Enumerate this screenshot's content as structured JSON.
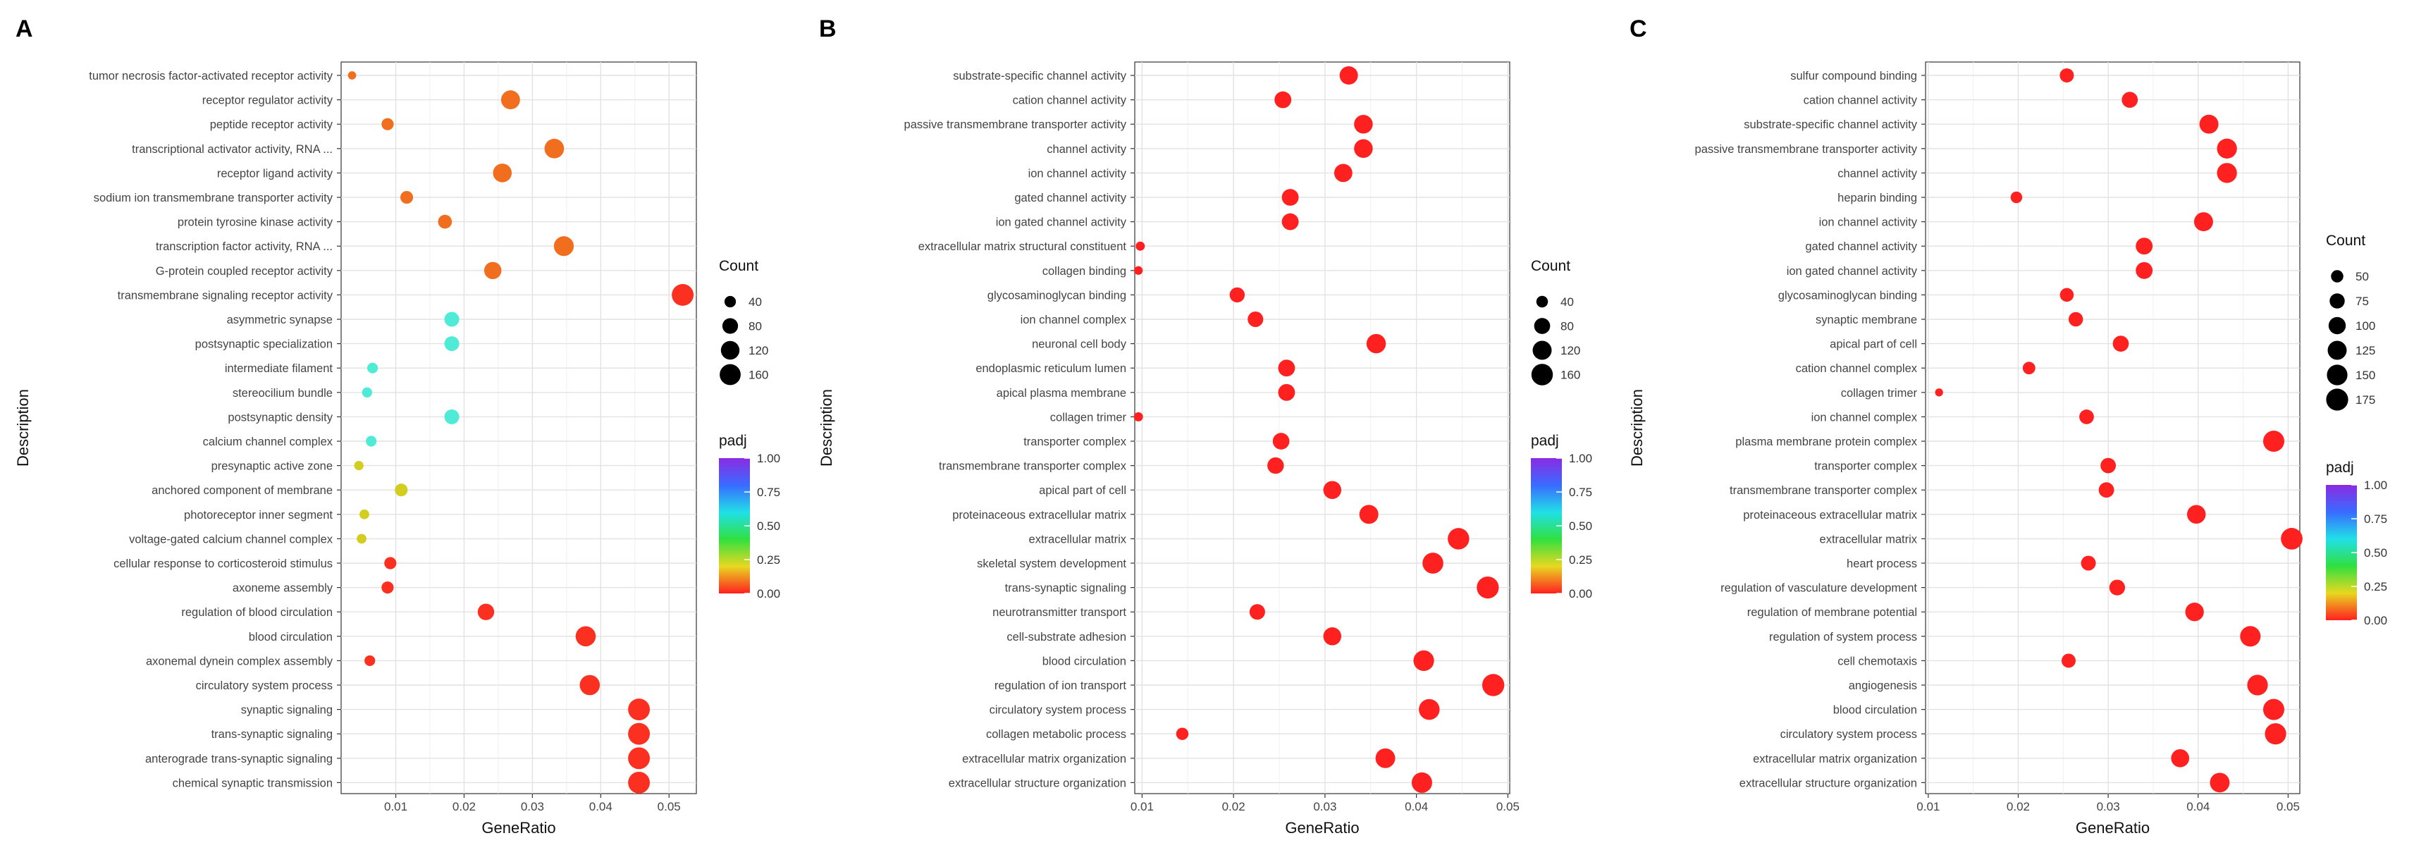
{
  "chart_data": [
    {
      "type": "scatter",
      "panel_label": "A",
      "xlabel": "GeneRatio",
      "ylabel": "Description",
      "xlim": [
        0.002,
        0.054
      ],
      "xticks": [
        0.01,
        0.02,
        0.03,
        0.04,
        0.05
      ],
      "xtick_labels": [
        "0.01",
        "0.02",
        "0.03",
        "0.04",
        "0.05"
      ],
      "grid": true,
      "size_legend": {
        "title": "Count",
        "values": [
          40,
          80,
          120,
          160
        ],
        "labels": [
          "40",
          "80",
          "120",
          "160"
        ]
      },
      "color_legend": {
        "title": "padj",
        "labels": [
          "1.00",
          "0.75",
          "0.50",
          "0.25",
          "0.00"
        ]
      },
      "size_range": [
        20,
        190
      ],
      "terms": [
        {
          "label": "tumor necrosis factor-activated receptor activity",
          "x": 0.0036,
          "count": 24,
          "padj": 0.1
        },
        {
          "label": "receptor regulator activity",
          "x": 0.0268,
          "count": 125,
          "padj": 0.1
        },
        {
          "label": "peptide receptor activity",
          "x": 0.0088,
          "count": 45,
          "padj": 0.1
        },
        {
          "label": "transcriptional activator activity, RNA ...",
          "x": 0.0332,
          "count": 135,
          "padj": 0.1
        },
        {
          "label": "receptor ligand activity",
          "x": 0.0256,
          "count": 122,
          "padj": 0.1
        },
        {
          "label": "sodium ion transmembrane transporter activity",
          "x": 0.0116,
          "count": 50,
          "padj": 0.1
        },
        {
          "label": "protein tyrosine kinase activity",
          "x": 0.0172,
          "count": 60,
          "padj": 0.1
        },
        {
          "label": "transcription factor activity, RNA ...",
          "x": 0.0346,
          "count": 140,
          "padj": 0.1
        },
        {
          "label": "G-protein coupled receptor activity",
          "x": 0.0242,
          "count": 100,
          "padj": 0.1
        },
        {
          "label": "transmembrane signaling receptor activity",
          "x": 0.052,
          "count": 175,
          "padj": 0.02
        },
        {
          "label": "asymmetric synapse",
          "x": 0.0182,
          "count": 70,
          "padj": 0.6
        },
        {
          "label": "postsynaptic specialization",
          "x": 0.0182,
          "count": 70,
          "padj": 0.6
        },
        {
          "label": "intermediate filament",
          "x": 0.0066,
          "count": 35,
          "padj": 0.6
        },
        {
          "label": "stereocilium bundle",
          "x": 0.0058,
          "count": 32,
          "padj": 0.6
        },
        {
          "label": "postsynaptic density",
          "x": 0.0182,
          "count": 70,
          "padj": 0.6
        },
        {
          "label": "calcium channel complex",
          "x": 0.0064,
          "count": 35,
          "padj": 0.6
        },
        {
          "label": "presynaptic active zone",
          "x": 0.0046,
          "count": 28,
          "padj": 0.32
        },
        {
          "label": "anchored component of membrane",
          "x": 0.0108,
          "count": 50,
          "padj": 0.32
        },
        {
          "label": "photoreceptor inner segment",
          "x": 0.0054,
          "count": 30,
          "padj": 0.32
        },
        {
          "label": "voltage-gated calcium channel complex",
          "x": 0.005,
          "count": 30,
          "padj": 0.32
        },
        {
          "label": "cellular response to corticosteroid stimulus",
          "x": 0.0092,
          "count": 45,
          "padj": 0.02
        },
        {
          "label": "axoneme assembly",
          "x": 0.0088,
          "count": 45,
          "padj": 0.02
        },
        {
          "label": "regulation of blood circulation",
          "x": 0.0232,
          "count": 90,
          "padj": 0.02
        },
        {
          "label": "blood circulation",
          "x": 0.0378,
          "count": 145,
          "padj": 0.02
        },
        {
          "label": "axonemal dynein complex assembly",
          "x": 0.0062,
          "count": 35,
          "padj": 0.02
        },
        {
          "label": "circulatory system process",
          "x": 0.0384,
          "count": 145,
          "padj": 0.02
        },
        {
          "label": "synaptic signaling",
          "x": 0.0456,
          "count": 175,
          "padj": 0.02
        },
        {
          "label": "trans-synaptic signaling",
          "x": 0.0456,
          "count": 175,
          "padj": 0.02
        },
        {
          "label": "anterograde trans-synaptic signaling",
          "x": 0.0456,
          "count": 175,
          "padj": 0.02
        },
        {
          "label": "chemical synaptic transmission",
          "x": 0.0456,
          "count": 175,
          "padj": 0.02
        }
      ]
    },
    {
      "type": "scatter",
      "panel_label": "B",
      "xlabel": "GeneRatio",
      "ylabel": "Description",
      "xlim": [
        0.0092,
        0.0502
      ],
      "xticks": [
        0.01,
        0.02,
        0.03,
        0.04,
        0.05
      ],
      "xtick_labels": [
        "0.01",
        "0.02",
        "0.03",
        "0.04",
        "0.05"
      ],
      "grid": true,
      "size_legend": {
        "title": "Count",
        "values": [
          40,
          80,
          120,
          160
        ],
        "labels": [
          "40",
          "80",
          "120",
          "160"
        ]
      },
      "color_legend": {
        "title": "padj",
        "labels": [
          "1.00",
          "0.75",
          "0.50",
          "0.25",
          "0.00"
        ]
      },
      "size_range": [
        20,
        180
      ],
      "terms": [
        {
          "label": "substrate-specific channel activity",
          "x": 0.0326,
          "count": 110,
          "padj": 0.0
        },
        {
          "label": "cation channel activity",
          "x": 0.0254,
          "count": 90,
          "padj": 0.0
        },
        {
          "label": "passive transmembrane transporter activity",
          "x": 0.0342,
          "count": 115,
          "padj": 0.0
        },
        {
          "label": "channel activity",
          "x": 0.0342,
          "count": 115,
          "padj": 0.0
        },
        {
          "label": "ion channel activity",
          "x": 0.032,
          "count": 108,
          "padj": 0.0
        },
        {
          "label": "gated channel activity",
          "x": 0.0262,
          "count": 90,
          "padj": 0.0
        },
        {
          "label": "ion gated channel activity",
          "x": 0.0262,
          "count": 90,
          "padj": 0.0
        },
        {
          "label": "extracellular matrix structural constituent",
          "x": 0.0098,
          "count": 27,
          "padj": 0.0
        },
        {
          "label": "collagen binding",
          "x": 0.0096,
          "count": 25,
          "padj": 0.0
        },
        {
          "label": "glycosaminoglycan binding",
          "x": 0.0204,
          "count": 70,
          "padj": 0.0
        },
        {
          "label": "ion channel complex",
          "x": 0.0224,
          "count": 75,
          "padj": 0.0
        },
        {
          "label": "neuronal cell body",
          "x": 0.0356,
          "count": 125,
          "padj": 0.0
        },
        {
          "label": "endoplasmic reticulum lumen",
          "x": 0.0258,
          "count": 90,
          "padj": 0.0
        },
        {
          "label": "apical plasma membrane",
          "x": 0.0258,
          "count": 90,
          "padj": 0.0
        },
        {
          "label": "collagen trimer",
          "x": 0.0096,
          "count": 27,
          "padj": 0.0
        },
        {
          "label": "transporter complex",
          "x": 0.0252,
          "count": 88,
          "padj": 0.0
        },
        {
          "label": "transmembrane transporter complex",
          "x": 0.0246,
          "count": 86,
          "padj": 0.0
        },
        {
          "label": "apical part of cell",
          "x": 0.0308,
          "count": 105,
          "padj": 0.0
        },
        {
          "label": "proteinaceous extracellular matrix",
          "x": 0.0348,
          "count": 120,
          "padj": 0.0
        },
        {
          "label": "extracellular matrix",
          "x": 0.0446,
          "count": 160,
          "padj": 0.0
        },
        {
          "label": "skeletal system development",
          "x": 0.0418,
          "count": 150,
          "padj": 0.0
        },
        {
          "label": "trans-synaptic signaling",
          "x": 0.0478,
          "count": 170,
          "padj": 0.0
        },
        {
          "label": "neurotransmitter transport",
          "x": 0.0226,
          "count": 75,
          "padj": 0.0
        },
        {
          "label": "cell-substrate adhesion",
          "x": 0.0308,
          "count": 105,
          "padj": 0.0
        },
        {
          "label": "blood circulation",
          "x": 0.0408,
          "count": 145,
          "padj": 0.0
        },
        {
          "label": "regulation of ion transport",
          "x": 0.0484,
          "count": 172,
          "padj": 0.0
        },
        {
          "label": "circulatory system process",
          "x": 0.0414,
          "count": 148,
          "padj": 0.0
        },
        {
          "label": "collagen metabolic process",
          "x": 0.0144,
          "count": 45,
          "padj": 0.0
        },
        {
          "label": "extracellular matrix organization",
          "x": 0.0366,
          "count": 130,
          "padj": 0.0
        },
        {
          "label": "extracellular structure organization",
          "x": 0.0406,
          "count": 143,
          "padj": 0.0
        }
      ]
    },
    {
      "type": "scatter",
      "panel_label": "C",
      "xlabel": "GeneRatio",
      "ylabel": "Description",
      "xlim": [
        0.0097,
        0.0513
      ],
      "xticks": [
        0.01,
        0.02,
        0.03,
        0.04,
        0.05
      ],
      "xtick_labels": [
        "0.01",
        "0.02",
        "0.03",
        "0.04",
        "0.05"
      ],
      "grid": true,
      "size_legend": {
        "title": "Count",
        "values": [
          50,
          75,
          100,
          125,
          150,
          175
        ],
        "labels": [
          "50",
          "75",
          "100",
          "125",
          "150",
          "175"
        ]
      },
      "color_legend": {
        "title": "padj",
        "labels": [
          "1.00",
          "0.75",
          "0.50",
          "0.25",
          "0.00"
        ]
      },
      "size_range": [
        25,
        185
      ],
      "terms": [
        {
          "label": "sulfur compound binding",
          "x": 0.0254,
          "count": 65,
          "padj": 0.0
        },
        {
          "label": "cation channel activity",
          "x": 0.0324,
          "count": 85,
          "padj": 0.0
        },
        {
          "label": "substrate-specific channel activity",
          "x": 0.0412,
          "count": 125,
          "padj": 0.0
        },
        {
          "label": "passive transmembrane transporter activity",
          "x": 0.0432,
          "count": 140,
          "padj": 0.0
        },
        {
          "label": "channel activity",
          "x": 0.0432,
          "count": 140,
          "padj": 0.0
        },
        {
          "label": "heparin binding",
          "x": 0.0198,
          "count": 45,
          "padj": 0.0
        },
        {
          "label": "ion channel activity",
          "x": 0.0406,
          "count": 125,
          "padj": 0.0
        },
        {
          "label": "gated channel activity",
          "x": 0.034,
          "count": 95,
          "padj": 0.0
        },
        {
          "label": "ion gated channel activity",
          "x": 0.034,
          "count": 95,
          "padj": 0.0
        },
        {
          "label": "glycosaminoglycan binding",
          "x": 0.0254,
          "count": 62,
          "padj": 0.0
        },
        {
          "label": "synaptic membrane",
          "x": 0.0264,
          "count": 68,
          "padj": 0.0
        },
        {
          "label": "apical part of cell",
          "x": 0.0314,
          "count": 85,
          "padj": 0.0
        },
        {
          "label": "cation channel complex",
          "x": 0.0212,
          "count": 52,
          "padj": 0.0
        },
        {
          "label": "collagen trimer",
          "x": 0.0112,
          "count": 28,
          "padj": 0.0
        },
        {
          "label": "ion channel complex",
          "x": 0.0276,
          "count": 70,
          "padj": 0.0
        },
        {
          "label": "plasma membrane protein complex",
          "x": 0.0484,
          "count": 160,
          "padj": 0.0
        },
        {
          "label": "transporter complex",
          "x": 0.03,
          "count": 78,
          "padj": 0.0
        },
        {
          "label": "transmembrane transporter complex",
          "x": 0.0298,
          "count": 78,
          "padj": 0.0
        },
        {
          "label": "proteinaceous extracellular matrix",
          "x": 0.0398,
          "count": 120,
          "padj": 0.0
        },
        {
          "label": "extracellular matrix",
          "x": 0.0504,
          "count": 168,
          "padj": 0.0
        },
        {
          "label": "heart process",
          "x": 0.0278,
          "count": 72,
          "padj": 0.0
        },
        {
          "label": "regulation of vasculature development",
          "x": 0.031,
          "count": 82,
          "padj": 0.0
        },
        {
          "label": "regulation of membrane potential",
          "x": 0.0396,
          "count": 118,
          "padj": 0.0
        },
        {
          "label": "regulation of system process",
          "x": 0.0458,
          "count": 148,
          "padj": 0.0
        },
        {
          "label": "cell chemotaxis",
          "x": 0.0256,
          "count": 65,
          "padj": 0.0
        },
        {
          "label": "angiogenesis",
          "x": 0.0466,
          "count": 150,
          "padj": 0.0
        },
        {
          "label": "blood circulation",
          "x": 0.0484,
          "count": 160,
          "padj": 0.0
        },
        {
          "label": "circulatory system process",
          "x": 0.0486,
          "count": 162,
          "padj": 0.0
        },
        {
          "label": "extracellular matrix organization",
          "x": 0.038,
          "count": 112,
          "padj": 0.0
        },
        {
          "label": "extracellular structure organization",
          "x": 0.0424,
          "count": 135,
          "padj": 0.0
        }
      ]
    }
  ]
}
